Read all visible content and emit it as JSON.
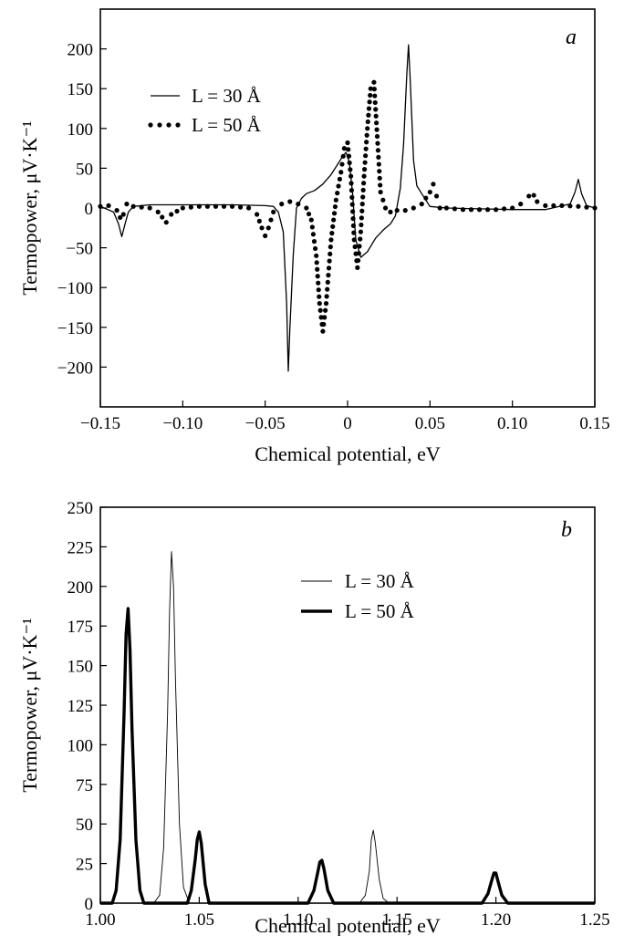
{
  "chart_data": [
    {
      "type": "line",
      "panel_label": "a",
      "xlabel": "Chemical potential, eV",
      "ylabel": "Termopower, μV·K⁻¹",
      "xlim": [
        -0.15,
        0.15
      ],
      "ylim": [
        -250,
        250
      ],
      "xticks": [
        -0.15,
        -0.1,
        -0.05,
        0,
        0.05,
        0.1,
        0.15
      ],
      "xtick_labels": [
        "−0.15",
        "−0.10",
        "−0.05",
        "0",
        "0.05",
        "0.10",
        "0.15"
      ],
      "yticks": [
        -200,
        -150,
        -100,
        -50,
        0,
        50,
        100,
        150,
        200
      ],
      "ytick_labels": [
        "−200",
        "−150",
        "−100",
        "−50",
        "0",
        "50",
        "100",
        "150",
        "200"
      ],
      "legend_position": "top-left",
      "series": [
        {
          "name": "L = 30 Å",
          "style": "solid",
          "x": [
            -0.15,
            -0.142,
            -0.139,
            -0.137,
            -0.135,
            -0.133,
            -0.13,
            -0.12,
            -0.1,
            -0.07,
            -0.05,
            -0.045,
            -0.042,
            -0.039,
            -0.037,
            -0.036,
            -0.035,
            -0.033,
            -0.031,
            -0.028,
            -0.025,
            -0.02,
            -0.015,
            -0.01,
            -0.006,
            -0.003,
            -0.001,
            0.001,
            0.003,
            0.005,
            0.008,
            0.012,
            0.017,
            0.022,
            0.026,
            0.029,
            0.032,
            0.034,
            0.036,
            0.037,
            0.038,
            0.04,
            0.042,
            0.045,
            0.05,
            0.06,
            0.08,
            0.1,
            0.12,
            0.135,
            0.138,
            0.14,
            0.142,
            0.145,
            0.15
          ],
          "y": [
            2,
            -5,
            -20,
            -36,
            -20,
            -5,
            2,
            4,
            4,
            4,
            3,
            2,
            -5,
            -30,
            -120,
            -205,
            -150,
            -60,
            0,
            12,
            18,
            22,
            30,
            42,
            55,
            65,
            70,
            58,
            20,
            -40,
            -62,
            -55,
            -38,
            -27,
            -20,
            -10,
            25,
            80,
            170,
            205,
            160,
            60,
            28,
            18,
            2,
            0,
            -1,
            -2,
            -2,
            5,
            20,
            36,
            18,
            3,
            0
          ]
        },
        {
          "name": "L = 50 Å",
          "style": "dotted",
          "x": [
            -0.15,
            -0.145,
            -0.14,
            -0.138,
            -0.136,
            -0.134,
            -0.13,
            -0.12,
            -0.115,
            -0.11,
            -0.107,
            -0.1,
            -0.09,
            -0.08,
            -0.07,
            -0.06,
            -0.055,
            -0.052,
            -0.05,
            -0.048,
            -0.045,
            -0.04,
            -0.035,
            -0.03,
            -0.025,
            -0.022,
            -0.019,
            -0.017,
            -0.015,
            -0.013,
            -0.01,
            -0.007,
            -0.004,
            -0.002,
            0.0,
            0.002,
            0.004,
            0.006,
            0.008,
            0.01,
            0.012,
            0.014,
            0.016,
            0.018,
            0.02,
            0.023,
            0.026,
            0.03,
            0.035,
            0.04,
            0.045,
            0.05,
            0.052,
            0.054,
            0.056,
            0.06,
            0.07,
            0.08,
            0.09,
            0.1,
            0.105,
            0.11,
            0.113,
            0.115,
            0.12,
            0.13,
            0.14,
            0.145,
            0.15
          ],
          "y": [
            2,
            3,
            -3,
            -12,
            -8,
            5,
            2,
            0,
            -5,
            -18,
            -8,
            0,
            2,
            2,
            2,
            0,
            -8,
            -25,
            -35,
            -25,
            -5,
            5,
            8,
            5,
            0,
            -15,
            -60,
            -120,
            -155,
            -120,
            -40,
            10,
            45,
            75,
            82,
            40,
            -40,
            -75,
            -30,
            40,
            100,
            150,
            158,
            90,
            20,
            0,
            -5,
            -3,
            -3,
            0,
            5,
            20,
            30,
            15,
            0,
            0,
            -2,
            -2,
            -2,
            0,
            5,
            15,
            16,
            8,
            3,
            3,
            2,
            1,
            0
          ]
        }
      ]
    },
    {
      "type": "line",
      "panel_label": "b",
      "xlabel": "Chemical potential, eV",
      "ylabel": "Termopower, μV·K⁻¹",
      "xlim": [
        1.0,
        1.25
      ],
      "ylim": [
        0,
        250
      ],
      "xticks": [
        1.0,
        1.05,
        1.1,
        1.15,
        1.2,
        1.25
      ],
      "xtick_labels": [
        "1.00",
        "1.05",
        "1.10",
        "1.15",
        "1.20",
        "1.25"
      ],
      "yticks": [
        0,
        25,
        50,
        75,
        100,
        125,
        150,
        175,
        200,
        225,
        250
      ],
      "ytick_labels": [
        "0",
        "25",
        "50",
        "75",
        "100",
        "125",
        "150",
        "175",
        "200",
        "225",
        "250"
      ],
      "legend_position": "upper-center",
      "series": [
        {
          "name": "L = 30 Å",
          "style": "thin",
          "x": [
            1.0,
            1.027,
            1.03,
            1.032,
            1.034,
            1.035,
            1.036,
            1.037,
            1.038,
            1.04,
            1.042,
            1.045,
            1.1,
            1.131,
            1.134,
            1.136,
            1.137,
            1.138,
            1.139,
            1.141,
            1.143,
            1.146,
            1.25
          ],
          "y": [
            0,
            0,
            5,
            35,
            120,
            185,
            222,
            200,
            140,
            50,
            10,
            0,
            0,
            0,
            5,
            20,
            40,
            46,
            38,
            15,
            3,
            0,
            0
          ]
        },
        {
          "name": "L = 50 Å",
          "style": "thick",
          "x": [
            1.0,
            1.006,
            1.008,
            1.01,
            1.012,
            1.013,
            1.014,
            1.015,
            1.016,
            1.018,
            1.02,
            1.022,
            1.044,
            1.046,
            1.048,
            1.049,
            1.05,
            1.051,
            1.053,
            1.055,
            1.105,
            1.108,
            1.11,
            1.111,
            1.112,
            1.113,
            1.115,
            1.118,
            1.193,
            1.196,
            1.198,
            1.199,
            1.2,
            1.201,
            1.203,
            1.206,
            1.25
          ],
          "y": [
            0,
            0,
            8,
            40,
            120,
            170,
            186,
            160,
            110,
            40,
            8,
            0,
            0,
            8,
            28,
            40,
            45,
            38,
            12,
            0,
            0,
            8,
            20,
            26,
            27,
            22,
            8,
            0,
            0,
            6,
            15,
            19,
            19,
            14,
            5,
            0,
            0
          ]
        }
      ]
    }
  ]
}
